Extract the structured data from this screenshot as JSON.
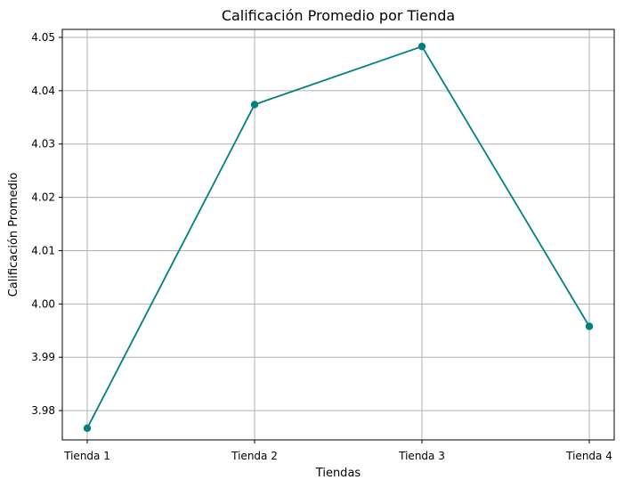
{
  "chart_data": {
    "type": "line",
    "title": "Calificación Promedio por Tienda",
    "xlabel": "Tiendas",
    "ylabel": "Calificación Promedio",
    "categories": [
      "Tienda 1",
      "Tienda 2",
      "Tienda 3",
      "Tienda 4"
    ],
    "series": [
      {
        "values": [
          3.9767,
          4.0374,
          4.0483,
          3.9958
        ]
      }
    ],
    "ylim": [
      3.9745,
      4.0515
    ],
    "yticks": [
      3.98,
      3.99,
      4.0,
      4.01,
      4.02,
      4.03,
      4.04,
      4.05
    ],
    "ytick_labels": [
      "3.98",
      "3.99",
      "4.00",
      "4.01",
      "4.02",
      "4.03",
      "4.04",
      "4.05"
    ],
    "grid": true,
    "line_color": "#008080"
  }
}
